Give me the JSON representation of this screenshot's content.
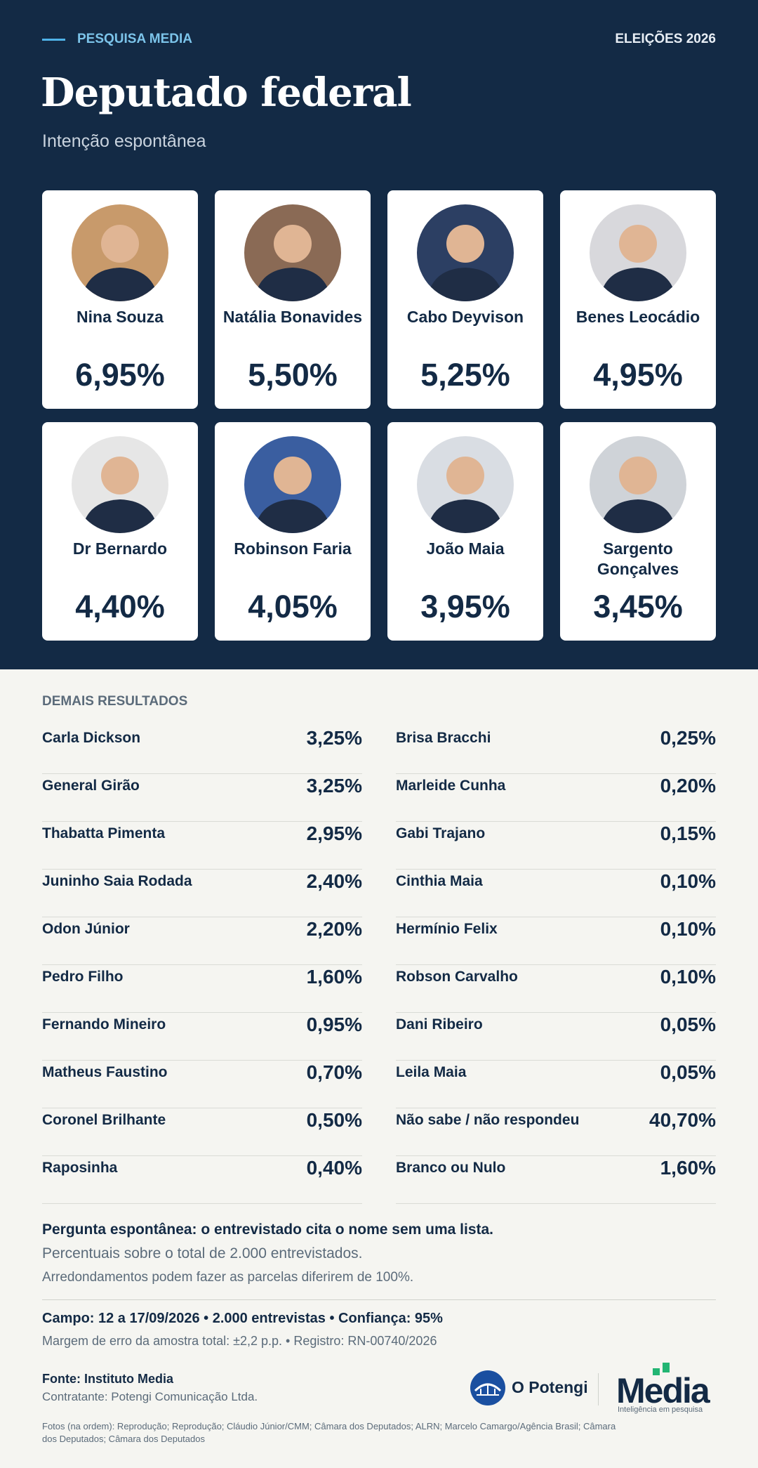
{
  "header": {
    "kicker": "PESQUISA MEDIA",
    "edition": "ELEIÇÕES 2026",
    "title": "Deputado federal",
    "subtitle": "Intenção espontânea"
  },
  "cards": [
    {
      "name": "Nina Souza",
      "value": "6,95%"
    },
    {
      "name": "Natália Bonavides",
      "value": "5,50%"
    },
    {
      "name": "Cabo Deyvison",
      "value": "5,25%"
    },
    {
      "name": "Benes Leocádio",
      "value": "4,95%"
    },
    {
      "name": "Dr Bernardo",
      "value": "4,40%"
    },
    {
      "name": "Robinson Faria",
      "value": "4,05%"
    },
    {
      "name": "João Maia",
      "value": "3,95%"
    },
    {
      "name": "Sargento Gonçalves",
      "value": "3,45%"
    }
  ],
  "others": {
    "title": "DEMAIS RESULTADOS",
    "left": [
      {
        "name": "Carla Dickson",
        "value": "3,25%"
      },
      {
        "name": "General Girão",
        "value": "3,25%"
      },
      {
        "name": "Thabatta Pimenta",
        "value": "2,95%"
      },
      {
        "name": "Juninho Saia Rodada",
        "value": "2,40%"
      },
      {
        "name": "Odon Júnior",
        "value": "2,20%"
      },
      {
        "name": "Pedro Filho",
        "value": "1,60%"
      },
      {
        "name": "Fernando Mineiro",
        "value": "0,95%"
      },
      {
        "name": "Matheus Faustino",
        "value": "0,70%"
      },
      {
        "name": "Coronel Brilhante",
        "value": "0,50%"
      },
      {
        "name": "Raposinha",
        "value": "0,40%"
      }
    ],
    "right": [
      {
        "name": "Brisa Bracchi",
        "value": "0,25%"
      },
      {
        "name": "Marleide Cunha",
        "value": "0,20%"
      },
      {
        "name": "Gabi Trajano",
        "value": "0,15%"
      },
      {
        "name": "Cinthia Maia",
        "value": "0,10%"
      },
      {
        "name": "Hermínio Felix",
        "value": "0,10%"
      },
      {
        "name": "Robson Carvalho",
        "value": "0,10%"
      },
      {
        "name": "Dani Ribeiro",
        "value": "0,05%"
      },
      {
        "name": "Leila Maia",
        "value": "0,05%"
      },
      {
        "name": "Não sabe / não respondeu",
        "value": "40,70%"
      },
      {
        "name": "Branco ou Nulo",
        "value": "1,60%"
      }
    ]
  },
  "notes": [
    "Pergunta espontânea: o entrevistado cita o nome sem uma lista.",
    "Percentuais sobre o total de 2.000 entrevistados.",
    "Arredondamentos podem fazer as parcelas diferirem de 100%."
  ],
  "fieldwork": [
    "Campo: 12 a 17/09/2026 • 2.000 entrevistas • Confiança: 95%",
    "Margem de erro da amostra total: ±2,2 p.p. • Registro: RN-00740/2026"
  ],
  "source": {
    "name": "Fonte: Instituto Media",
    "client": "Contratante: Potengi Comunicação Ltda."
  },
  "logos": {
    "potengi": "O Potengi",
    "media": "Media",
    "media_tagline": "Inteligência em pesquisa"
  },
  "credits": "Fotos (na ordem): Reprodução; Reprodução; Cláudio Júnior/CMM; Câmara dos Deputados; ALRN; Marcelo Camargo/Agência Brasil; Câmara dos Deputados; Câmara dos Deputados"
}
